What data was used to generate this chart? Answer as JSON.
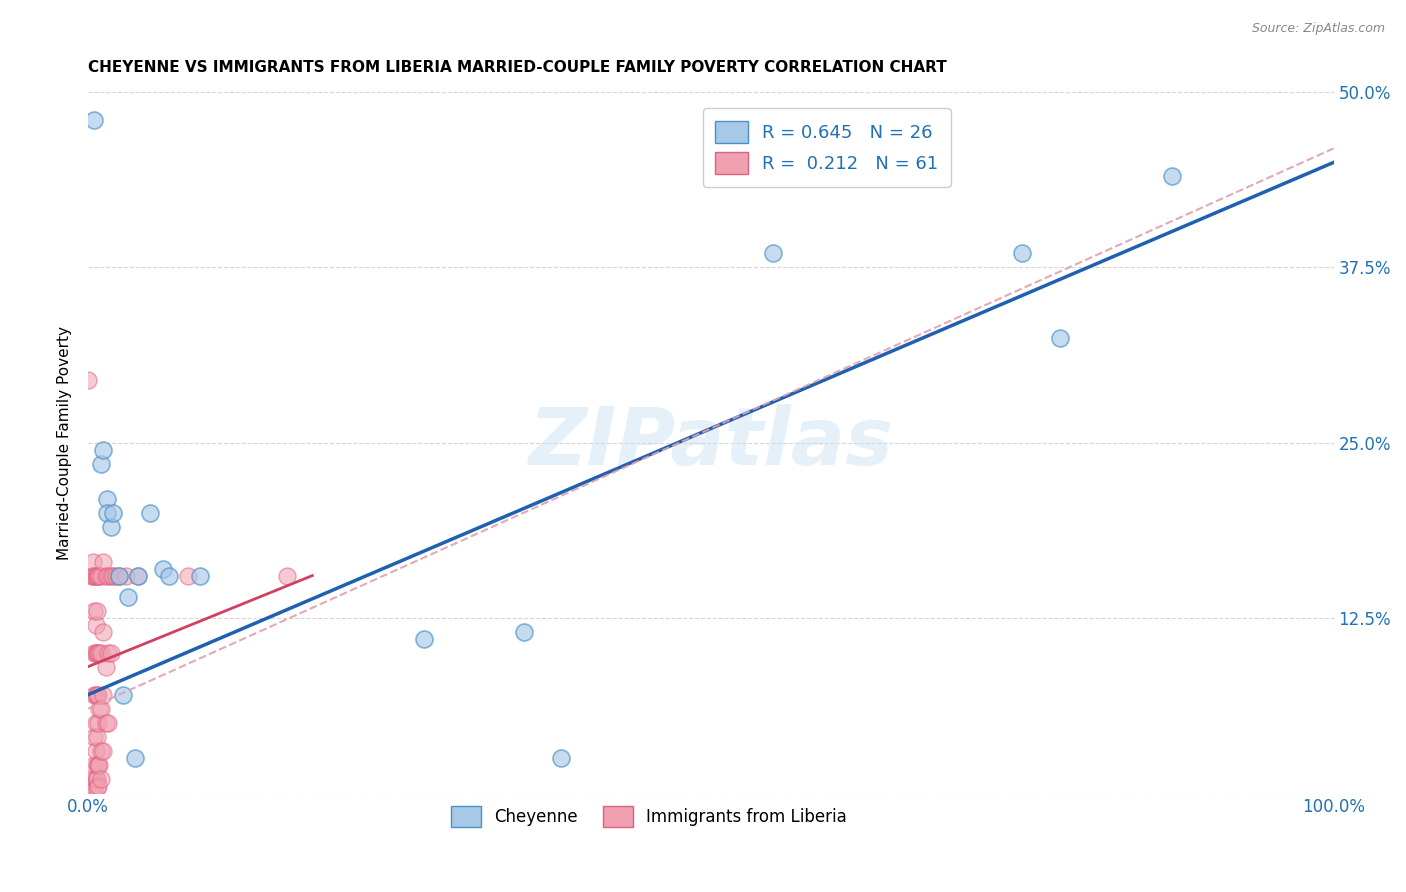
{
  "title": "CHEYENNE VS IMMIGRANTS FROM LIBERIA MARRIED-COUPLE FAMILY POVERTY CORRELATION CHART",
  "source": "Source: ZipAtlas.com",
  "ylabel": "Married-Couple Family Poverty",
  "xlim": [
    0,
    1.0
  ],
  "ylim": [
    0,
    0.5
  ],
  "watermark": "ZIPatlas",
  "blue_color": "#a8c8e8",
  "blue_edge_color": "#4a90c8",
  "pink_color": "#f0a0b0",
  "pink_edge_color": "#e06080",
  "blue_line_color": "#2060b0",
  "pink_solid_color": "#d04060",
  "pink_dash_color": "#e0a0b0",
  "grid_color": "#cccccc",
  "blue_scatter": [
    [
      0.005,
      0.48
    ],
    [
      0.01,
      0.235
    ],
    [
      0.012,
      0.245
    ],
    [
      0.015,
      0.21
    ],
    [
      0.015,
      0.2
    ],
    [
      0.018,
      0.19
    ],
    [
      0.02,
      0.2
    ],
    [
      0.025,
      0.155
    ],
    [
      0.04,
      0.155
    ],
    [
      0.028,
      0.07
    ],
    [
      0.032,
      0.14
    ],
    [
      0.038,
      0.025
    ],
    [
      0.05,
      0.2
    ],
    [
      0.06,
      0.16
    ],
    [
      0.065,
      0.155
    ],
    [
      0.09,
      0.155
    ],
    [
      0.27,
      0.11
    ],
    [
      0.35,
      0.115
    ],
    [
      0.38,
      0.025
    ],
    [
      0.55,
      0.385
    ],
    [
      0.75,
      0.385
    ],
    [
      0.78,
      0.325
    ],
    [
      0.87,
      0.44
    ]
  ],
  "pink_scatter": [
    [
      0.0,
      0.295
    ],
    [
      0.003,
      0.155
    ],
    [
      0.004,
      0.155
    ],
    [
      0.004,
      0.165
    ],
    [
      0.005,
      0.155
    ],
    [
      0.005,
      0.13
    ],
    [
      0.005,
      0.1
    ],
    [
      0.005,
      0.07
    ],
    [
      0.005,
      0.04
    ],
    [
      0.005,
      0.02
    ],
    [
      0.005,
      0.01
    ],
    [
      0.005,
      0.005
    ],
    [
      0.005,
      0.002
    ],
    [
      0.006,
      0.155
    ],
    [
      0.006,
      0.12
    ],
    [
      0.006,
      0.1
    ],
    [
      0.006,
      0.07
    ],
    [
      0.006,
      0.05
    ],
    [
      0.006,
      0.03
    ],
    [
      0.006,
      0.01
    ],
    [
      0.007,
      0.155
    ],
    [
      0.007,
      0.13
    ],
    [
      0.007,
      0.1
    ],
    [
      0.007,
      0.07
    ],
    [
      0.007,
      0.04
    ],
    [
      0.007,
      0.02
    ],
    [
      0.007,
      0.01
    ],
    [
      0.007,
      0.003
    ],
    [
      0.008,
      0.155
    ],
    [
      0.008,
      0.1
    ],
    [
      0.008,
      0.07
    ],
    [
      0.008,
      0.05
    ],
    [
      0.008,
      0.02
    ],
    [
      0.008,
      0.005
    ],
    [
      0.009,
      0.155
    ],
    [
      0.009,
      0.1
    ],
    [
      0.009,
      0.06
    ],
    [
      0.009,
      0.02
    ],
    [
      0.01,
      0.155
    ],
    [
      0.01,
      0.1
    ],
    [
      0.01,
      0.06
    ],
    [
      0.01,
      0.03
    ],
    [
      0.01,
      0.01
    ],
    [
      0.012,
      0.165
    ],
    [
      0.012,
      0.115
    ],
    [
      0.012,
      0.07
    ],
    [
      0.012,
      0.03
    ],
    [
      0.014,
      0.155
    ],
    [
      0.014,
      0.09
    ],
    [
      0.014,
      0.05
    ],
    [
      0.016,
      0.155
    ],
    [
      0.016,
      0.1
    ],
    [
      0.016,
      0.05
    ],
    [
      0.018,
      0.155
    ],
    [
      0.018,
      0.1
    ],
    [
      0.02,
      0.155
    ],
    [
      0.022,
      0.155
    ],
    [
      0.025,
      0.155
    ],
    [
      0.03,
      0.155
    ],
    [
      0.04,
      0.155
    ],
    [
      0.08,
      0.155
    ],
    [
      0.16,
      0.155
    ]
  ],
  "blue_trendline": [
    [
      0.0,
      0.07
    ],
    [
      1.0,
      0.45
    ]
  ],
  "pink_dash_trendline": [
    [
      0.0,
      0.06
    ],
    [
      1.0,
      0.46
    ]
  ],
  "pink_solid_trendline_x": [
    0.0,
    0.18
  ],
  "pink_solid_trendline_y": [
    0.09,
    0.155
  ]
}
